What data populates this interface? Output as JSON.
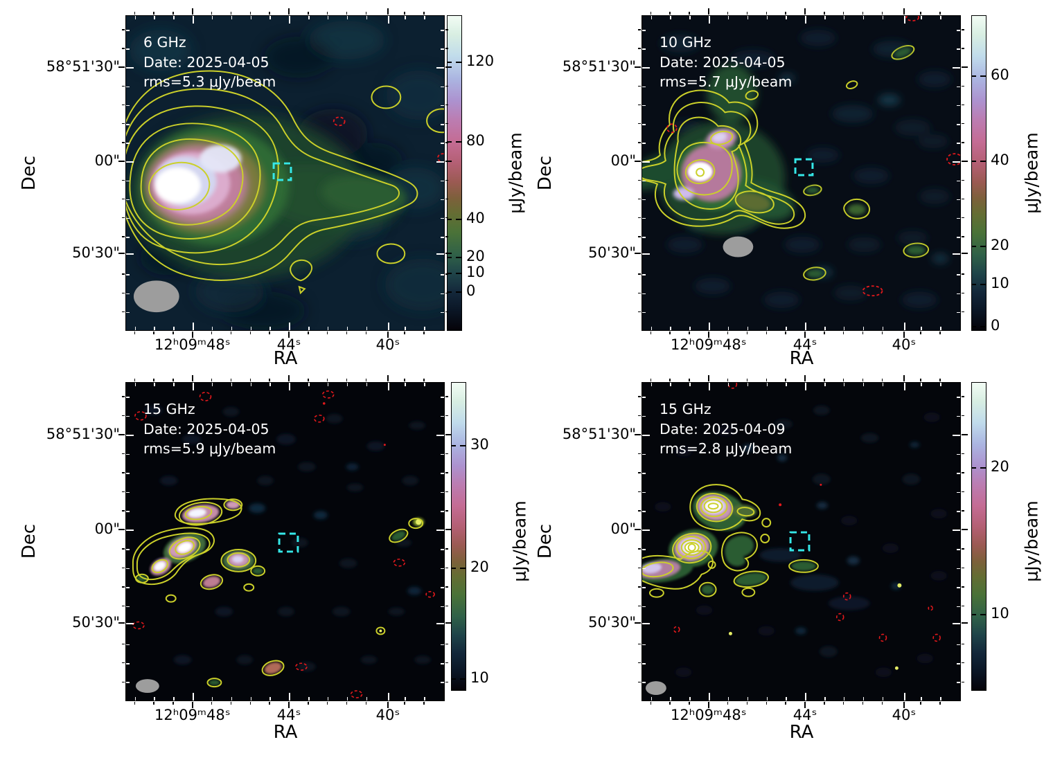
{
  "figure": {
    "xlabel": "RA",
    "ylabel": "Dec",
    "colorbar_label": "μJy/beam",
    "x_tick_labels": [
      "12ʰ09ᵐ48ˢ",
      "44ˢ",
      "40ˢ"
    ],
    "y_tick_labels": [
      "58°51'30\"",
      "00\"",
      "50'30\""
    ]
  },
  "colors": {
    "positive_contour": "#cbd02a",
    "negative_contour": "#e3191c",
    "target_box": "#35e8e8",
    "beam_ellipse": "#9d9d9d",
    "annotation_text": "#ffffff",
    "colormap_low_to_high": [
      "#050309",
      "#0a1524",
      "#13273a",
      "#1f4449",
      "#306148",
      "#4a7238",
      "#646d33",
      "#7d603b",
      "#9a5a52",
      "#b35f73",
      "#c46c94",
      "#bb7db2",
      "#ac92cf",
      "#abb5e1",
      "#c0dbeb",
      "#d8eee2",
      "#f2fcf4"
    ]
  },
  "panels": [
    {
      "id": "6ghz-2025-04-05",
      "annotation": {
        "freq": "6 GHz",
        "date": "Date: 2025-04-05",
        "rms": "rms=5.3 μJy/beam"
      },
      "colorbar": {
        "ticks": [
          {
            "label": "120",
            "f": 0.148
          },
          {
            "label": "80",
            "f": 0.4
          },
          {
            "label": "40",
            "f": 0.645
          },
          {
            "label": "20",
            "f": 0.765
          },
          {
            "label": "10",
            "f": 0.815
          },
          {
            "label": "0",
            "f": 0.875
          }
        ]
      }
    },
    {
      "id": "10ghz-2025-04-05",
      "annotation": {
        "freq": "10 GHz",
        "date": "Date: 2025-04-05",
        "rms": "rms=5.7 μJy/beam"
      },
      "colorbar": {
        "ticks": [
          {
            "label": "60",
            "f": 0.19
          },
          {
            "label": "40",
            "f": 0.46
          },
          {
            "label": "20",
            "f": 0.73
          },
          {
            "label": "10",
            "f": 0.85
          },
          {
            "label": "0",
            "f": 0.985
          }
        ]
      }
    },
    {
      "id": "15ghz-2025-04-05",
      "annotation": {
        "freq": "15 GHz",
        "date": "Date: 2025-04-05",
        "rms": "rms=5.9 μJy/beam"
      },
      "colorbar": {
        "ticks": [
          {
            "label": "30",
            "f": 0.205
          },
          {
            "label": "20",
            "f": 0.6
          },
          {
            "label": "10",
            "f": 0.96
          }
        ]
      }
    },
    {
      "id": "15ghz-2025-04-09",
      "annotation": {
        "freq": "15 GHz",
        "date": "Date: 2025-04-09",
        "rms": "rms=2.8 μJy/beam"
      },
      "colorbar": {
        "ticks": [
          {
            "label": "20",
            "f": 0.275
          },
          {
            "label": "10",
            "f": 0.75
          }
        ]
      }
    }
  ],
  "chart_data": [
    {
      "type": "heatmap",
      "panel": "top-left",
      "title": "6 GHz",
      "frequency_ghz": 6,
      "observation_date": "2025-04-05",
      "rms_noise_uJy_per_beam": 5.3,
      "xlabel": "RA",
      "x_tick_labels": [
        "12h09m48s",
        "44s",
        "40s"
      ],
      "ylabel": "Dec",
      "y_tick_labels": [
        "58°51'30\"",
        "00\"",
        "50'30\""
      ],
      "colorbar_label": "μJy/beam",
      "colorbar_tick_values": [
        120,
        80,
        40,
        20,
        10,
        0
      ],
      "colorbar_scale": "nonlinear (asinh-like)",
      "overlays": {
        "positive_contours": "yellow solid, ~6 nested levels around source",
        "negative_contours": "red dashed, one small ellipse near field center-right",
        "target_marker": "cyan dashed square just west of source at ~12h09m44.5s",
        "beam": "large grey filled ellipse, bottom-left corner"
      },
      "content": "Bright extended radio source east of center (white core ~140 uJy/beam with pink halo) with low-brightness green tail extending west; isolated faint contour islands at NW and S."
    },
    {
      "type": "heatmap",
      "panel": "top-right",
      "title": "10 GHz",
      "frequency_ghz": 10,
      "observation_date": "2025-04-05",
      "rms_noise_uJy_per_beam": 5.7,
      "xlabel": "RA",
      "x_tick_labels": [
        "12h09m48s",
        "44s",
        "40s"
      ],
      "ylabel": "Dec",
      "y_tick_labels": [
        "58°51'30\"",
        "00\"",
        "50'30\""
      ],
      "colorbar_label": "μJy/beam",
      "colorbar_tick_values": [
        60,
        40,
        20,
        10,
        0
      ],
      "colorbar_scale": "nonlinear (asinh-like)",
      "overlays": {
        "positive_contours": "yellow solid, nested around compact source plus several small islands",
        "negative_contours": "red dashed ellipses scattered (NW, E edge, S)",
        "target_marker": "cyan dashed square near field center",
        "beam": "grey filled ellipse below source"
      },
      "content": "Compact bright source (white core with ring) NE of beam with pink halo and short green tail to SE; background mostly dark with faint teal noise blobs."
    },
    {
      "type": "heatmap",
      "panel": "bottom-left",
      "title": "15 GHz",
      "frequency_ghz": 15,
      "observation_date": "2025-04-05",
      "rms_noise_uJy_per_beam": 5.9,
      "xlabel": "RA",
      "x_tick_labels": [
        "12h09m48s",
        "44s",
        "40s"
      ],
      "ylabel": "Dec",
      "y_tick_labels": [
        "58°51'30\"",
        "00\"",
        "50'30\""
      ],
      "colorbar_label": "μJy/beam",
      "colorbar_tick_values": [
        30,
        20,
        10
      ],
      "colorbar_scale": "nonlinear (asinh-like)",
      "overlays": {
        "positive_contours": "yellow solid around many small knots",
        "negative_contours": "many small red dashed ellipses scattered over field",
        "target_marker": "cyan dashed square near field center",
        "beam": "small grey filled ellipse, bottom-left corner"
      },
      "content": "Source breaks into a chain of compact knots (white/pink cores) in the eastern half; numerous faint blobs and noise peaks across a nearly black field."
    },
    {
      "type": "heatmap",
      "panel": "bottom-right",
      "title": "15 GHz",
      "frequency_ghz": 15,
      "observation_date": "2025-04-09",
      "rms_noise_uJy_per_beam": 2.8,
      "xlabel": "RA",
      "x_tick_labels": [
        "12h09m48s",
        "44s",
        "40s"
      ],
      "ylabel": "Dec",
      "y_tick_labels": [
        "58°51'30\"",
        "00\"",
        "50'30\""
      ],
      "colorbar_label": "μJy/beam",
      "colorbar_tick_values": [
        20,
        10
      ],
      "colorbar_scale": "nonlinear (asinh-like)",
      "overlays": {
        "positive_contours": "yellow solid, concentric rings on two bright compact sources plus extended envelope",
        "negative_contours": "small red dashed circles in SW quadrant",
        "target_marker": "cyan dashed square near field center",
        "beam": "small grey filled ellipse, bottom-left corner"
      },
      "content": "Two strong compact sources (concentric contours, white cores) NE with pink extension to SW and green filamentary envelope; deeper map with low noise."
    }
  ]
}
